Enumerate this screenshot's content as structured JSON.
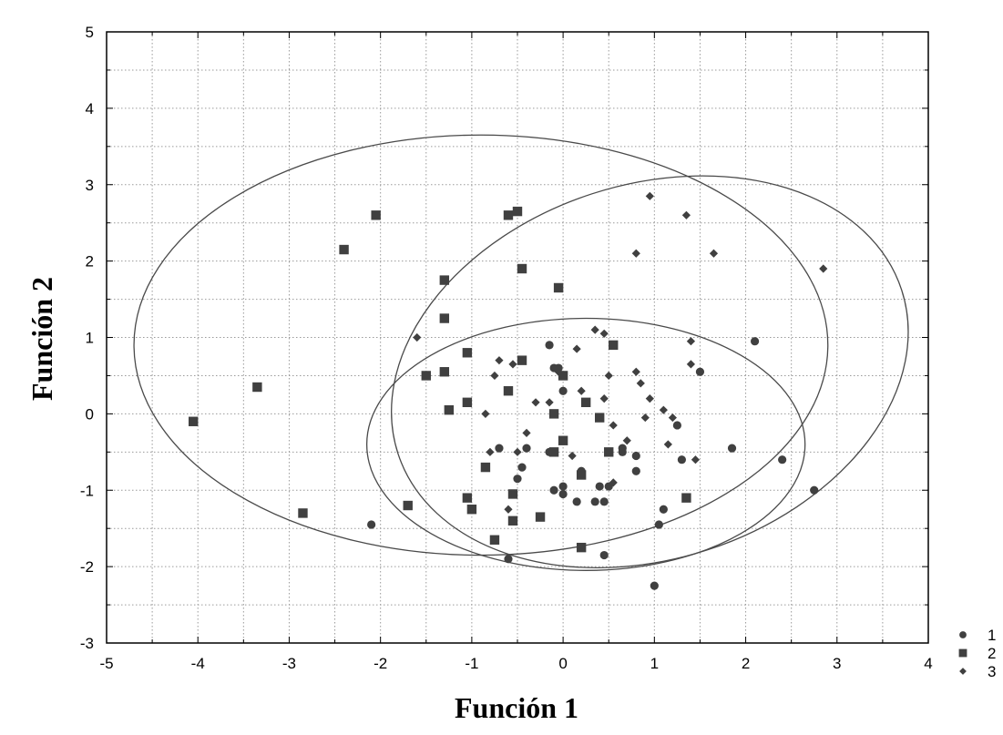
{
  "chart_data": {
    "type": "scatter",
    "title": "",
    "xlabel": "Función 1",
    "ylabel": "Función 2",
    "xlim": [
      -5,
      4
    ],
    "ylim": [
      -3,
      5
    ],
    "xticks": [
      -5,
      -4,
      -3,
      -2,
      -1,
      0,
      1,
      2,
      3,
      4
    ],
    "yticks": [
      -3,
      -2,
      -1,
      0,
      1,
      2,
      3,
      4,
      5
    ],
    "xtick_labels": [
      "-5",
      "-4",
      "-3",
      "-2",
      "-1",
      "0",
      "1",
      "2",
      "3",
      "4"
    ],
    "ytick_labels": [
      "-3",
      "-2",
      "-1",
      "0",
      "1",
      "2",
      "3",
      "4",
      "5"
    ],
    "grid": true,
    "legend_position": "bottom-right, outside plot",
    "marker_color": "#404040",
    "series": [
      {
        "name": "1",
        "marker": "circle",
        "points": [
          [
            -2.1,
            -1.45
          ],
          [
            -0.6,
            -1.9
          ],
          [
            -0.5,
            -0.85
          ],
          [
            -0.45,
            -0.7
          ],
          [
            -0.4,
            -0.45
          ],
          [
            -0.7,
            -0.45
          ],
          [
            -0.15,
            0.9
          ],
          [
            -0.05,
            0.6
          ],
          [
            -0.1,
            -1.0
          ],
          [
            0.0,
            -1.05
          ],
          [
            0.0,
            -0.95
          ],
          [
            0.15,
            -1.15
          ],
          [
            0.2,
            -0.75
          ],
          [
            0.35,
            -1.15
          ],
          [
            0.45,
            -1.15
          ],
          [
            0.4,
            -0.95
          ],
          [
            0.45,
            -1.85
          ],
          [
            0.65,
            -0.5
          ],
          [
            0.8,
            -0.55
          ],
          [
            0.8,
            -0.75
          ],
          [
            1.05,
            -1.45
          ],
          [
            1.1,
            -1.25
          ],
          [
            1.25,
            -0.15
          ],
          [
            1.3,
            -0.6
          ],
          [
            1.5,
            0.55
          ],
          [
            1.85,
            -0.45
          ],
          [
            2.4,
            -0.6
          ],
          [
            2.75,
            -1.0
          ],
          [
            1.0,
            -2.25
          ],
          [
            -0.1,
            0.6
          ],
          [
            0.0,
            0.3
          ],
          [
            -0.15,
            -0.5
          ],
          [
            0.65,
            -0.45
          ],
          [
            0.5,
            -0.95
          ],
          [
            2.1,
            0.95
          ]
        ]
      },
      {
        "name": "2",
        "marker": "square",
        "points": [
          [
            -4.05,
            -0.1
          ],
          [
            -3.35,
            0.35
          ],
          [
            -2.85,
            -1.3
          ],
          [
            -2.4,
            2.15
          ],
          [
            -2.05,
            2.6
          ],
          [
            -1.7,
            -1.2
          ],
          [
            -1.5,
            0.5
          ],
          [
            -1.3,
            0.55
          ],
          [
            -1.3,
            1.75
          ],
          [
            -1.3,
            1.25
          ],
          [
            -1.25,
            0.05
          ],
          [
            -1.05,
            0.8
          ],
          [
            -1.05,
            0.15
          ],
          [
            -1.05,
            -1.1
          ],
          [
            -1.0,
            -1.25
          ],
          [
            -0.85,
            -0.7
          ],
          [
            -0.75,
            -1.65
          ],
          [
            -0.6,
            0.3
          ],
          [
            -0.6,
            2.6
          ],
          [
            -0.5,
            2.65
          ],
          [
            -0.45,
            1.9
          ],
          [
            -0.45,
            0.7
          ],
          [
            -0.55,
            -1.05
          ],
          [
            -0.55,
            -1.4
          ],
          [
            -0.25,
            -1.35
          ],
          [
            -0.1,
            0.0
          ],
          [
            -0.1,
            -0.5
          ],
          [
            -0.05,
            1.65
          ],
          [
            0.0,
            0.5
          ],
          [
            0.0,
            -0.35
          ],
          [
            0.2,
            -1.75
          ],
          [
            0.25,
            0.15
          ],
          [
            0.4,
            -0.05
          ],
          [
            0.5,
            -0.5
          ],
          [
            0.55,
            0.9
          ],
          [
            1.35,
            -1.1
          ],
          [
            0.2,
            -0.8
          ]
        ]
      },
      {
        "name": "3",
        "marker": "diamond",
        "points": [
          [
            -1.6,
            1.0
          ],
          [
            -0.85,
            0.0
          ],
          [
            -0.8,
            -0.5
          ],
          [
            -0.75,
            0.5
          ],
          [
            -0.7,
            0.7
          ],
          [
            -0.55,
            0.65
          ],
          [
            -0.6,
            -1.25
          ],
          [
            -0.5,
            -0.5
          ],
          [
            -0.4,
            -0.25
          ],
          [
            -0.3,
            0.15
          ],
          [
            -0.15,
            0.15
          ],
          [
            -0.05,
            0.55
          ],
          [
            0.1,
            -0.55
          ],
          [
            0.15,
            0.85
          ],
          [
            0.2,
            0.3
          ],
          [
            0.35,
            1.1
          ],
          [
            0.45,
            1.05
          ],
          [
            0.45,
            0.2
          ],
          [
            0.5,
            0.5
          ],
          [
            0.55,
            -0.15
          ],
          [
            0.55,
            -0.9
          ],
          [
            0.7,
            -0.35
          ],
          [
            0.8,
            0.55
          ],
          [
            0.85,
            0.4
          ],
          [
            0.9,
            -0.05
          ],
          [
            0.95,
            0.2
          ],
          [
            0.95,
            2.85
          ],
          [
            0.8,
            2.1
          ],
          [
            1.1,
            0.05
          ],
          [
            1.15,
            -0.4
          ],
          [
            1.2,
            -0.05
          ],
          [
            1.35,
            2.6
          ],
          [
            1.4,
            0.95
          ],
          [
            1.4,
            0.65
          ],
          [
            1.45,
            -0.6
          ],
          [
            1.65,
            2.1
          ],
          [
            2.85,
            1.9
          ]
        ]
      }
    ],
    "ellipses": [
      {
        "series": "1",
        "cx": 0.25,
        "cy": -0.4,
        "rx": 2.4,
        "ry": 1.65
      },
      {
        "series": "2",
        "cx": -0.9,
        "cy": 0.9,
        "rx": 3.8,
        "ry": 2.75
      },
      {
        "series": "3",
        "cx": 0.95,
        "cy": 0.55,
        "rx": 2.9,
        "ry": 2.45,
        "angle_deg": 18
      }
    ]
  }
}
